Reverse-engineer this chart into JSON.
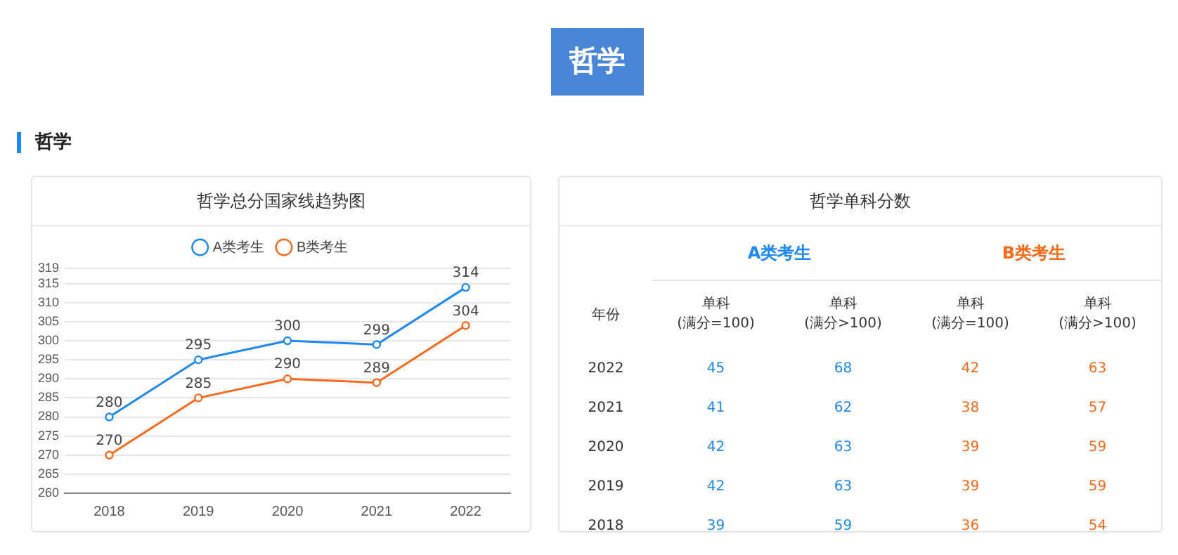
{
  "chart_data": [
    {
      "type": "line",
      "title": "哲学总分国家线趋势图",
      "annotations": [
        "哲学",
        "哲学"
      ],
      "categories": [
        "2018",
        "2019",
        "2020",
        "2021",
        "2022"
      ],
      "series": [
        {
          "name": "A类考生",
          "color": "#1e88f5",
          "values": [
            280,
            295,
            300,
            299,
            314
          ]
        },
        {
          "name": "B类考生",
          "color": "#fa6a1c",
          "values": [
            270,
            285,
            290,
            289,
            304
          ]
        }
      ],
      "ylim": [
        260,
        319
      ],
      "yticks": [
        260,
        265,
        270,
        275,
        280,
        285,
        290,
        295,
        300,
        305,
        310,
        315,
        319
      ],
      "grid": "y",
      "legend": "top",
      "marker": "circle",
      "line_style": "solid",
      "data_labels": true
    },
    {
      "type": "heatmap",
      "title": "哲学单科分数",
      "ylabel": "年份",
      "annotations": [
        "A类考生",
        "B类考生"
      ],
      "categories": [
        "单科\n(满分=100)",
        "单科\n(满分>100)",
        "单科\n(满分=100)",
        "单科\n(满分>100)"
      ],
      "y_categories": [
        "2022",
        "2021",
        "2020",
        "2019",
        "2018"
      ],
      "colors": [
        "#1e88f5",
        "#1e88f5",
        "#fa6a1c",
        "#fa6a1c"
      ],
      "cells": [
        [
          45,
          68,
          42,
          63
        ],
        [
          41,
          62,
          38,
          57
        ],
        [
          42,
          63,
          39,
          59
        ],
        [
          42,
          63,
          39,
          59
        ],
        [
          39,
          59,
          36,
          54
        ]
      ],
      "data_labels": true
    }
  ]
}
